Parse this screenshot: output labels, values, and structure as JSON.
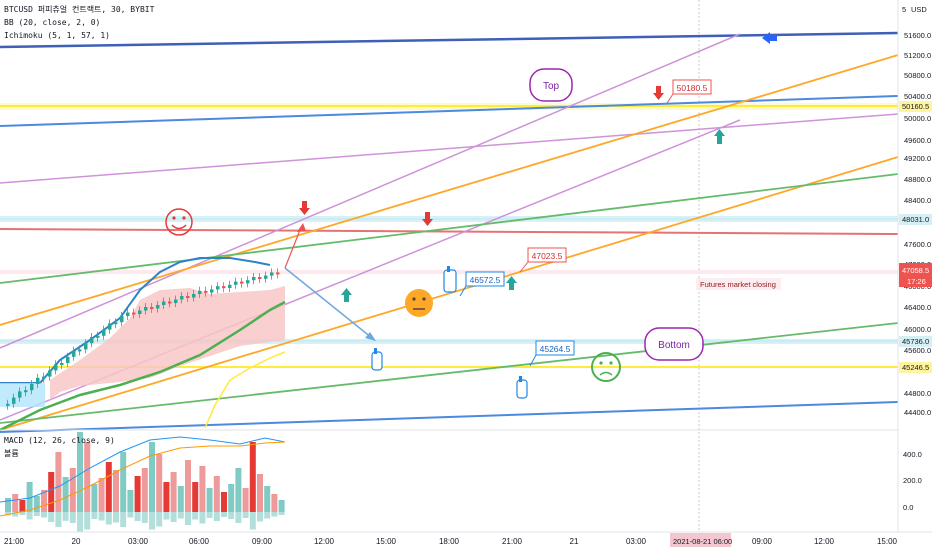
{
  "header": {
    "symbol_line": "BTCUSD 퍼피츄얼 컨트랙트, 30, BYBIT",
    "bb_line": "BB (20, close, 2, 0)",
    "ichimoku_line": "Ichimoku (5, 1, 57, 1)",
    "macd_line": "MACD (12, 26, close, 9)",
    "macd_sub": "볼륨"
  },
  "price_axis": {
    "currency": "USD",
    "ticks": [
      "51600.0",
      "51200.0",
      "50800.0",
      "50400.0",
      "50000.0",
      "49600.0",
      "49200.0",
      "48800.0",
      "48400.0",
      "47600.0",
      "47200.0",
      "46800.0",
      "46400.0",
      "46000.0",
      "45600.0",
      "44800.0",
      "44400.0"
    ],
    "current_price": "47058.5",
    "countdown": "17:26",
    "level_labels": [
      "50160.5",
      "48031.0",
      "45736.0",
      "45246.5"
    ],
    "five_label": "5"
  },
  "macd_axis": {
    "ticks": [
      "400.0",
      "200.0",
      "0.0"
    ]
  },
  "time_axis": {
    "ticks": [
      "21:00",
      "20",
      "03:00",
      "06:00",
      "09:00",
      "12:00",
      "15:00",
      "18:00",
      "21:00",
      "21",
      "03:00",
      "06:00",
      "09:00",
      "12:00",
      "15:00"
    ],
    "highlight": "2021-08-21  06:00"
  },
  "annotations": {
    "top": "Top",
    "bottom": "Bottom",
    "futures": "Futures market closing",
    "price_50180": "50180.5",
    "price_47023": "47023.5",
    "price_46572": "46572.5",
    "price_45264": "45264.5"
  },
  "colors": {
    "up": "#26a69a",
    "down": "#ef5350",
    "yellow_line": "#ffeb3b",
    "orange_line": "#ff9800",
    "green_line": "#66bb6a",
    "blue_line": "#4a7fd8",
    "violet_line": "#ce93d8",
    "red_line": "#e57373",
    "cloud": "#f8c7c7"
  },
  "chart_data": {
    "type": "candlestick",
    "symbol": "BTCUSD",
    "timeframe": "30",
    "exchange": "BYBIT",
    "y_range": [
      44200,
      52000
    ],
    "horizontal_levels": [
      50160.5,
      48031.0,
      45736.0,
      45246.5
    ],
    "annotated_prices": [
      50180.5,
      47023.5,
      46572.5,
      45264.5
    ],
    "last_price": 47058.5,
    "macd_range": [
      -100,
      500
    ]
  }
}
